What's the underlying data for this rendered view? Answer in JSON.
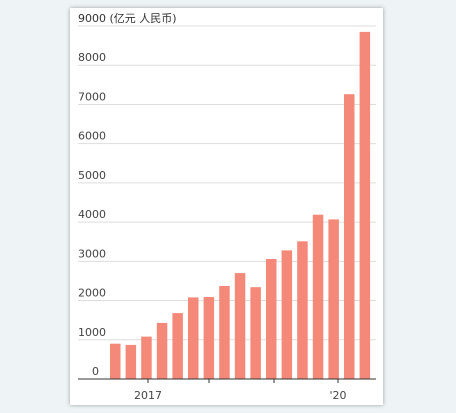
{
  "chart_data": {
    "type": "bar",
    "unit_label": "9000 (亿元 人民币)",
    "ylim": [
      0,
      9000
    ],
    "y_ticks": [
      0,
      1000,
      2000,
      3000,
      4000,
      5000,
      6000,
      7000,
      8000
    ],
    "x_tick_labels": [
      "2017",
      "'20"
    ],
    "grid": true,
    "bar_color": "#f4897a",
    "values": [
      900,
      870,
      1080,
      1430,
      1680,
      2080,
      2090,
      2370,
      2700,
      2340,
      3060,
      3280,
      3510,
      4190,
      4070,
      7260,
      8850
    ]
  }
}
